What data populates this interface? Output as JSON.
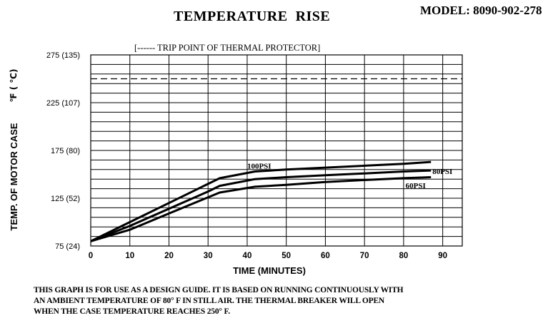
{
  "header": {
    "title": "TEMPERATURE  RISE",
    "model": "MODEL: 8090-902-278"
  },
  "legend": {
    "trip_point": "[------  TRIP POINT OF THERMAL PROTECTOR]"
  },
  "chart_data": {
    "type": "line",
    "title": "TEMPERATURE  RISE",
    "xlabel": "TIME (MINUTES)",
    "ylabel": "TEMP. OF MOTOR CASE",
    "ylabel_unit": "℉  ( ℃)",
    "xlim": [
      0,
      95
    ],
    "ylim": [
      75,
      275
    ],
    "x_ticks": [
      0,
      10,
      20,
      30,
      40,
      50,
      60,
      70,
      80,
      90
    ],
    "x_tick_labels": [
      "0",
      "10",
      "20",
      "30",
      "40",
      "50",
      "60",
      "70",
      "80",
      "90"
    ],
    "y_ticks": [
      75,
      125,
      175,
      225,
      275
    ],
    "y_tick_labels": [
      "75 (24)",
      "125  (52)",
      "175  (80)",
      "225 (107)",
      "275 (135)"
    ],
    "grid": true,
    "trip_point": 250,
    "series": [
      {
        "name": "100PSI",
        "x": [
          0,
          10,
          20,
          30,
          33,
          42,
          50,
          60,
          70,
          80,
          87
        ],
        "y": [
          80,
          100,
          120,
          140,
          146,
          153,
          155,
          157,
          159,
          161,
          163
        ]
      },
      {
        "name": "80PSI",
        "x": [
          0,
          10,
          20,
          30,
          33,
          42,
          50,
          60,
          70,
          80,
          87
        ],
        "y": [
          80,
          96,
          114,
          132,
          138,
          145,
          147,
          149,
          151,
          153,
          154
        ]
      },
      {
        "name": "60PSI",
        "x": [
          0,
          10,
          20,
          30,
          33,
          42,
          50,
          60,
          70,
          80,
          87
        ],
        "y": [
          80,
          92,
          109,
          126,
          131,
          137,
          139,
          142,
          144,
          146,
          147
        ]
      }
    ]
  },
  "note": {
    "line1": "THIS GRAPH IS FOR USE AS A DESIGN GUIDE.  IT IS BASED ON RUNNING CONTINUOUSLY WITH",
    "line2": "AN AMBIENT TEMPERATURE OF 80° F IN STILL AIR.  THE THERMAL BREAKER WILL OPEN",
    "line3": "WHEN THE CASE TEMPERATURE REACHES 250° F."
  }
}
